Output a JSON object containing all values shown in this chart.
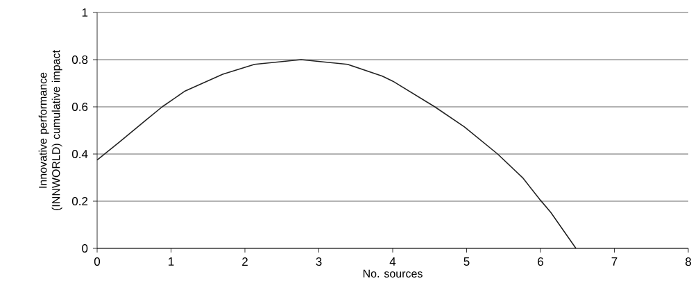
{
  "chart_data": {
    "type": "line",
    "xlabel": "No. sources",
    "ylabel": "Innovative performance (INNWORLD) cumulative impact",
    "x": [
      0,
      0.3,
      0.66,
      0.88,
      1.19,
      1.7,
      2.13,
      2.76,
      3.39,
      3.86,
      4,
      4.57,
      4.97,
      5.42,
      5.76,
      6,
      6.14,
      6.48
    ],
    "series": [
      {
        "color": "#222222",
        "values": [
          0.375,
          0.45,
          0.544,
          0.6,
          0.667,
          0.738,
          0.78,
          0.8,
          0.78,
          0.73,
          0.709,
          0.6,
          0.515,
          0.4,
          0.299,
          0.204,
          0.152,
          0
        ]
      }
    ],
    "xlim": [
      0,
      8
    ],
    "ylim": [
      0,
      1
    ],
    "xticks": [
      0,
      1,
      2,
      3,
      4,
      5,
      6,
      7,
      8
    ],
    "yticks": [
      0,
      0.2,
      0.4,
      0.6,
      0.8,
      1
    ],
    "grid": "y",
    "marker": "none",
    "line_style": "solid"
  }
}
